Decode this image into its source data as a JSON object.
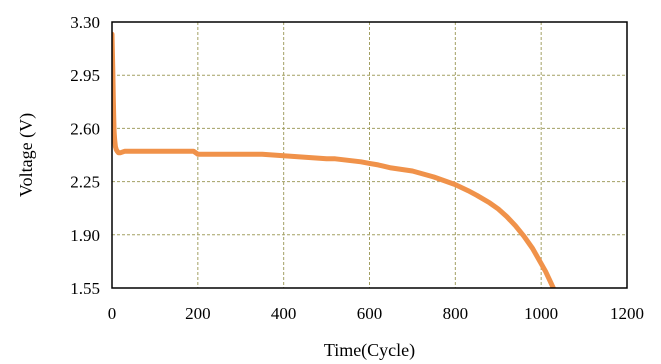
{
  "chart_data": {
    "type": "line",
    "title": "",
    "xlabel": "Time(Cycle)",
    "ylabel": "Voltage (V)",
    "xlim": [
      0,
      1200
    ],
    "ylim": [
      1.55,
      3.3
    ],
    "xticks": [
      0,
      200,
      400,
      600,
      800,
      1000,
      1200
    ],
    "yticks": [
      1.55,
      1.9,
      2.25,
      2.6,
      2.95,
      3.3
    ],
    "xtick_labels": [
      "0",
      "200",
      "400",
      "600",
      "800",
      "1000",
      "1200"
    ],
    "ytick_labels": [
      "1.55",
      "1.90",
      "2.25",
      "2.60",
      "2.95",
      "3.30"
    ],
    "grid": true,
    "grid_color": "#a3a064",
    "line_color": "#f0924a",
    "series": [
      {
        "x": [
          0,
          1,
          2,
          3,
          4,
          5,
          6,
          8,
          10,
          12,
          15,
          20,
          30,
          50,
          80,
          120,
          160,
          190,
          200,
          230,
          260,
          300,
          350,
          400,
          450,
          500,
          520,
          550,
          580,
          600,
          620,
          650,
          700,
          750,
          800,
          830,
          850,
          880,
          900,
          920,
          940,
          960,
          980,
          1000,
          1010,
          1020,
          1030
        ],
        "y": [
          3.22,
          3.1,
          2.95,
          2.8,
          2.68,
          2.58,
          2.53,
          2.48,
          2.46,
          2.45,
          2.44,
          2.44,
          2.45,
          2.45,
          2.45,
          2.45,
          2.45,
          2.45,
          2.43,
          2.43,
          2.43,
          2.43,
          2.43,
          2.42,
          2.41,
          2.4,
          2.4,
          2.39,
          2.38,
          2.37,
          2.36,
          2.34,
          2.32,
          2.28,
          2.23,
          2.19,
          2.16,
          2.11,
          2.07,
          2.02,
          1.96,
          1.89,
          1.81,
          1.71,
          1.66,
          1.6,
          1.54
        ]
      }
    ]
  }
}
